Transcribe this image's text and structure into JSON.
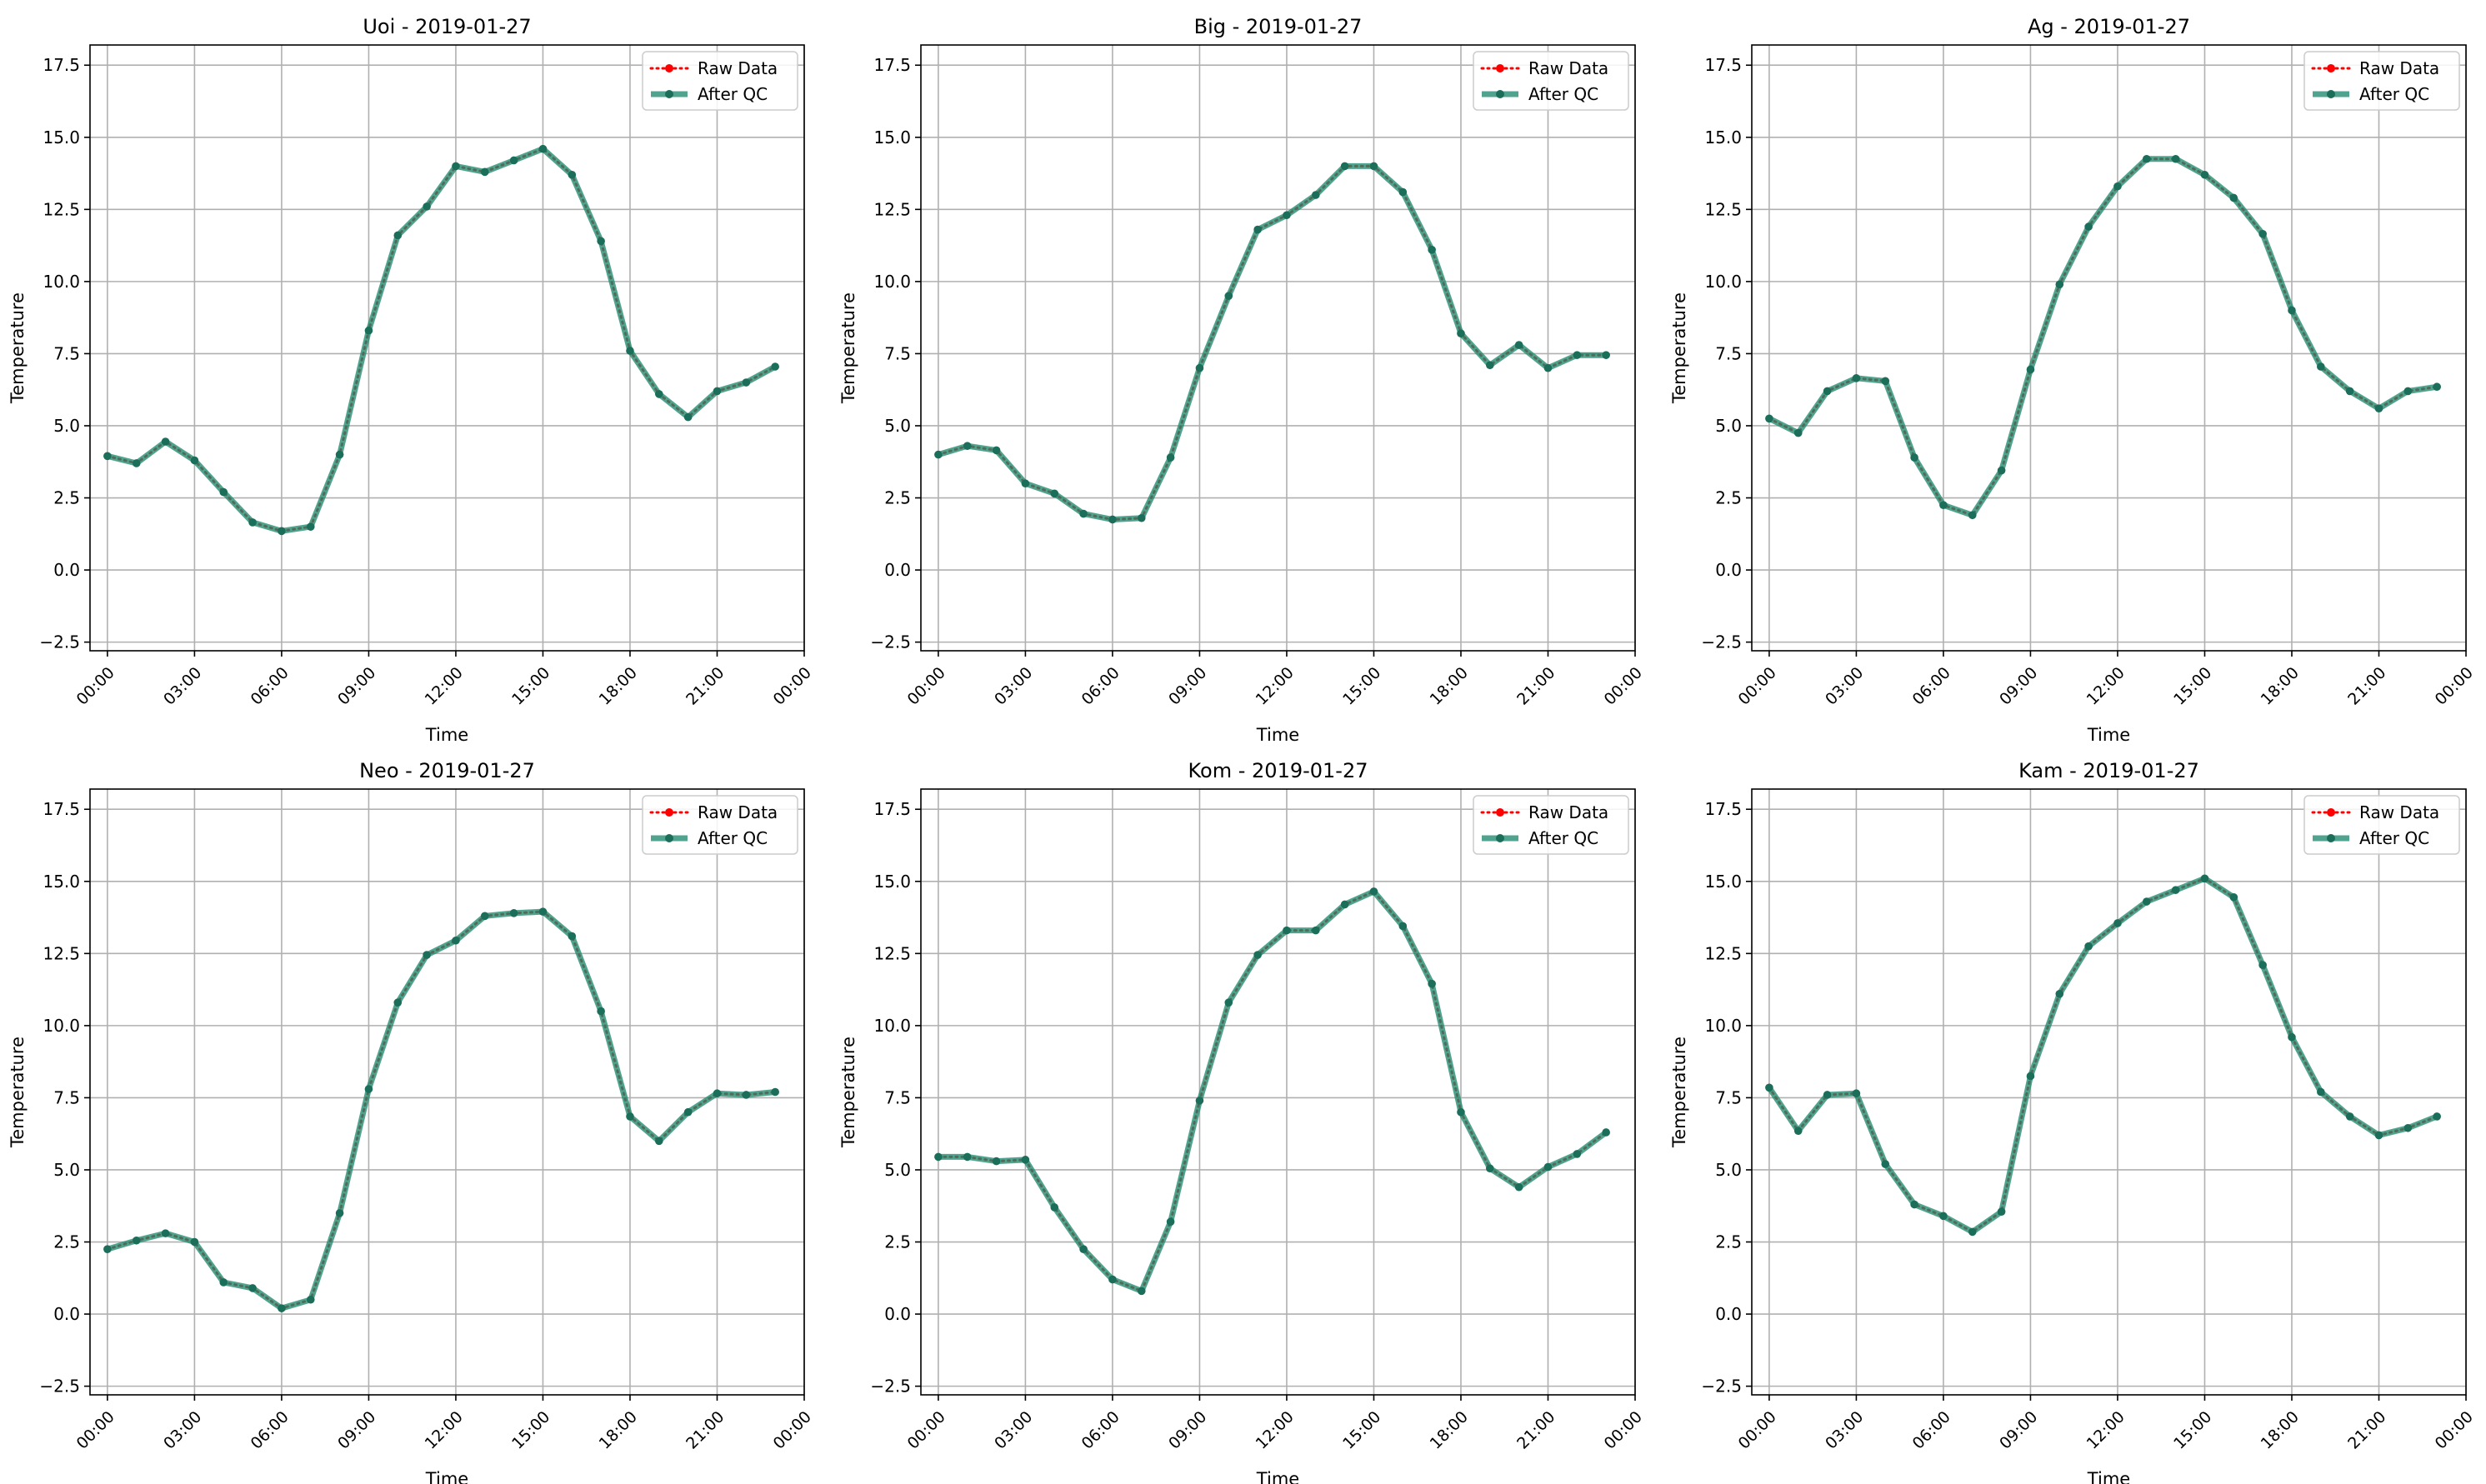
{
  "figure": {
    "legend_location": "top-right",
    "colors": {
      "raw": "#ff0000",
      "qc": "#1f8a70",
      "grid": "#b0b0b0"
    }
  },
  "chart_data": [
    {
      "type": "line",
      "title": "Uoi - 2019-01-27",
      "xlabel": "Time",
      "ylabel": "Temperature",
      "x_ticks": [
        "00:00",
        "03:00",
        "06:00",
        "09:00",
        "12:00",
        "15:00",
        "18:00",
        "21:00",
        "00:00"
      ],
      "y_ticks": [
        "−2.5",
        "0.0",
        "2.5",
        "5.0",
        "7.5",
        "10.0",
        "12.5",
        "15.0",
        "17.5"
      ],
      "ylim": [
        -2.8,
        18.2
      ],
      "xlim_hours": [
        -0.6,
        24.0
      ],
      "grid": true,
      "legend": [
        "Raw Data",
        "After QC"
      ],
      "x_hours": [
        0,
        1,
        2,
        3,
        4,
        5,
        6,
        7,
        8,
        9,
        10,
        11,
        12,
        13,
        14,
        15,
        16,
        17,
        18,
        19,
        20,
        21,
        22,
        23
      ],
      "series": [
        {
          "name": "Raw Data",
          "values": [
            3.95,
            3.7,
            4.45,
            3.8,
            2.7,
            1.65,
            1.35,
            1.5,
            4.0,
            8.3,
            11.6,
            12.6,
            14.0,
            13.8,
            14.2,
            14.6,
            13.7,
            11.4,
            7.6,
            6.1,
            5.3,
            6.2,
            6.5,
            7.05
          ]
        },
        {
          "name": "After QC",
          "values": [
            3.95,
            3.7,
            4.45,
            3.8,
            2.7,
            1.65,
            1.35,
            1.5,
            4.0,
            8.3,
            11.6,
            12.6,
            14.0,
            13.8,
            14.2,
            14.6,
            13.7,
            11.4,
            7.6,
            6.1,
            5.3,
            6.2,
            6.5,
            7.05
          ]
        }
      ]
    },
    {
      "type": "line",
      "title": "Big - 2019-01-27",
      "xlabel": "Time",
      "ylabel": "Temperature",
      "x_ticks": [
        "00:00",
        "03:00",
        "06:00",
        "09:00",
        "12:00",
        "15:00",
        "18:00",
        "21:00",
        "00:00"
      ],
      "y_ticks": [
        "−2.5",
        "0.0",
        "2.5",
        "5.0",
        "7.5",
        "10.0",
        "12.5",
        "15.0",
        "17.5"
      ],
      "ylim": [
        -2.8,
        18.2
      ],
      "xlim_hours": [
        -0.6,
        24.0
      ],
      "grid": true,
      "legend": [
        "Raw Data",
        "After QC"
      ],
      "x_hours": [
        0,
        1,
        2,
        3,
        4,
        5,
        6,
        7,
        8,
        9,
        10,
        11,
        12,
        13,
        14,
        15,
        16,
        17,
        18,
        19,
        20,
        21,
        22,
        23
      ],
      "series": [
        {
          "name": "Raw Data",
          "values": [
            4.0,
            4.3,
            4.15,
            3.0,
            2.65,
            1.95,
            1.75,
            1.8,
            3.9,
            7.0,
            9.5,
            11.8,
            12.3,
            13.0,
            14.0,
            14.0,
            13.1,
            11.1,
            8.2,
            7.1,
            7.8,
            7.0,
            7.45,
            7.45
          ]
        },
        {
          "name": "After QC",
          "values": [
            4.0,
            4.3,
            4.15,
            3.0,
            2.65,
            1.95,
            1.75,
            1.8,
            3.9,
            7.0,
            9.5,
            11.8,
            12.3,
            13.0,
            14.0,
            14.0,
            13.1,
            11.1,
            8.2,
            7.1,
            7.8,
            7.0,
            7.45,
            7.45
          ]
        }
      ]
    },
    {
      "type": "line",
      "title": "Ag - 2019-01-27",
      "xlabel": "Time",
      "ylabel": "Temperature",
      "x_ticks": [
        "00:00",
        "03:00",
        "06:00",
        "09:00",
        "12:00",
        "15:00",
        "18:00",
        "21:00",
        "00:00"
      ],
      "y_ticks": [
        "−2.5",
        "0.0",
        "2.5",
        "5.0",
        "7.5",
        "10.0",
        "12.5",
        "15.0",
        "17.5"
      ],
      "ylim": [
        -2.8,
        18.2
      ],
      "xlim_hours": [
        -0.6,
        24.0
      ],
      "grid": true,
      "legend": [
        "Raw Data",
        "After QC"
      ],
      "x_hours": [
        0,
        1,
        2,
        3,
        4,
        5,
        6,
        7,
        8,
        9,
        10,
        11,
        12,
        13,
        14,
        15,
        16,
        17,
        18,
        19,
        20,
        21,
        22,
        23
      ],
      "series": [
        {
          "name": "Raw Data",
          "values": [
            5.25,
            4.75,
            6.2,
            6.65,
            6.55,
            3.9,
            2.25,
            1.9,
            3.45,
            6.95,
            9.9,
            11.9,
            13.3,
            14.25,
            14.25,
            13.7,
            12.9,
            11.65,
            9.0,
            7.05,
            6.2,
            5.6,
            6.2,
            6.35
          ]
        },
        {
          "name": "After QC",
          "values": [
            5.25,
            4.75,
            6.2,
            6.65,
            6.55,
            3.9,
            2.25,
            1.9,
            3.45,
            6.95,
            9.9,
            11.9,
            13.3,
            14.25,
            14.25,
            13.7,
            12.9,
            11.65,
            9.0,
            7.05,
            6.2,
            5.6,
            6.2,
            6.35
          ]
        }
      ]
    },
    {
      "type": "line",
      "title": "Neo - 2019-01-27",
      "xlabel": "Time",
      "ylabel": "Temperature",
      "x_ticks": [
        "00:00",
        "03:00",
        "06:00",
        "09:00",
        "12:00",
        "15:00",
        "18:00",
        "21:00",
        "00:00"
      ],
      "y_ticks": [
        "−2.5",
        "0.0",
        "2.5",
        "5.0",
        "7.5",
        "10.0",
        "12.5",
        "15.0",
        "17.5"
      ],
      "ylim": [
        -2.8,
        18.2
      ],
      "xlim_hours": [
        -0.6,
        24.0
      ],
      "grid": true,
      "legend": [
        "Raw Data",
        "After QC"
      ],
      "x_hours": [
        0,
        1,
        2,
        3,
        4,
        5,
        6,
        7,
        8,
        9,
        10,
        11,
        12,
        13,
        14,
        15,
        16,
        17,
        18,
        19,
        20,
        21,
        22,
        23
      ],
      "series": [
        {
          "name": "Raw Data",
          "values": [
            2.25,
            2.55,
            2.8,
            2.5,
            1.1,
            0.9,
            0.2,
            0.5,
            3.5,
            7.8,
            10.8,
            12.45,
            12.95,
            13.8,
            13.9,
            13.95,
            13.1,
            10.5,
            6.85,
            6.0,
            7.0,
            7.65,
            7.6,
            7.7
          ]
        },
        {
          "name": "After QC",
          "values": [
            2.25,
            2.55,
            2.8,
            2.5,
            1.1,
            0.9,
            0.2,
            0.5,
            3.5,
            7.8,
            10.8,
            12.45,
            12.95,
            13.8,
            13.9,
            13.95,
            13.1,
            10.5,
            6.85,
            6.0,
            7.0,
            7.65,
            7.6,
            7.7
          ]
        }
      ]
    },
    {
      "type": "line",
      "title": "Kom - 2019-01-27",
      "xlabel": "Time",
      "ylabel": "Temperature",
      "x_ticks": [
        "00:00",
        "03:00",
        "06:00",
        "09:00",
        "12:00",
        "15:00",
        "18:00",
        "21:00",
        "00:00"
      ],
      "y_ticks": [
        "−2.5",
        "0.0",
        "2.5",
        "5.0",
        "7.5",
        "10.0",
        "12.5",
        "15.0",
        "17.5"
      ],
      "ylim": [
        -2.8,
        18.2
      ],
      "xlim_hours": [
        -0.6,
        24.0
      ],
      "grid": true,
      "legend": [
        "Raw Data",
        "After QC"
      ],
      "x_hours": [
        0,
        1,
        2,
        3,
        4,
        5,
        6,
        7,
        8,
        9,
        10,
        11,
        12,
        13,
        14,
        15,
        16,
        17,
        18,
        19,
        20,
        21,
        22,
        23
      ],
      "series": [
        {
          "name": "Raw Data",
          "values": [
            5.45,
            5.45,
            5.3,
            5.35,
            3.7,
            2.25,
            1.2,
            0.8,
            3.2,
            7.4,
            10.8,
            12.45,
            13.3,
            13.3,
            14.2,
            14.65,
            13.45,
            11.45,
            7.0,
            5.05,
            4.4,
            5.1,
            5.55,
            6.3
          ]
        },
        {
          "name": "After QC",
          "values": [
            5.45,
            5.45,
            5.3,
            5.35,
            3.7,
            2.25,
            1.2,
            0.8,
            3.2,
            7.4,
            10.8,
            12.45,
            13.3,
            13.3,
            14.2,
            14.65,
            13.45,
            11.45,
            7.0,
            5.05,
            4.4,
            5.1,
            5.55,
            6.3
          ]
        }
      ]
    },
    {
      "type": "line",
      "title": "Kam - 2019-01-27",
      "xlabel": "Time",
      "ylabel": "Temperature",
      "x_ticks": [
        "00:00",
        "03:00",
        "06:00",
        "09:00",
        "12:00",
        "15:00",
        "18:00",
        "21:00",
        "00:00"
      ],
      "y_ticks": [
        "−2.5",
        "0.0",
        "2.5",
        "5.0",
        "7.5",
        "10.0",
        "12.5",
        "15.0",
        "17.5"
      ],
      "ylim": [
        -2.8,
        18.2
      ],
      "xlim_hours": [
        -0.6,
        24.0
      ],
      "grid": true,
      "legend": [
        "Raw Data",
        "After QC"
      ],
      "x_hours": [
        0,
        1,
        2,
        3,
        4,
        5,
        6,
        7,
        8,
        9,
        10,
        11,
        12,
        13,
        14,
        15,
        16,
        17,
        18,
        19,
        20,
        21,
        22,
        23
      ],
      "series": [
        {
          "name": "Raw Data",
          "values": [
            7.85,
            6.35,
            7.6,
            7.65,
            5.2,
            3.8,
            3.4,
            2.85,
            3.55,
            8.25,
            11.1,
            12.75,
            13.55,
            14.3,
            14.7,
            15.1,
            14.45,
            12.1,
            9.6,
            7.7,
            6.85,
            6.2,
            6.45,
            6.85
          ]
        },
        {
          "name": "After QC",
          "values": [
            7.85,
            6.35,
            7.6,
            7.65,
            5.2,
            3.8,
            3.4,
            2.85,
            3.55,
            8.25,
            11.1,
            12.75,
            13.55,
            14.3,
            14.7,
            15.1,
            14.45,
            12.1,
            9.6,
            7.7,
            6.85,
            6.2,
            6.45,
            6.85
          ]
        }
      ]
    }
  ]
}
